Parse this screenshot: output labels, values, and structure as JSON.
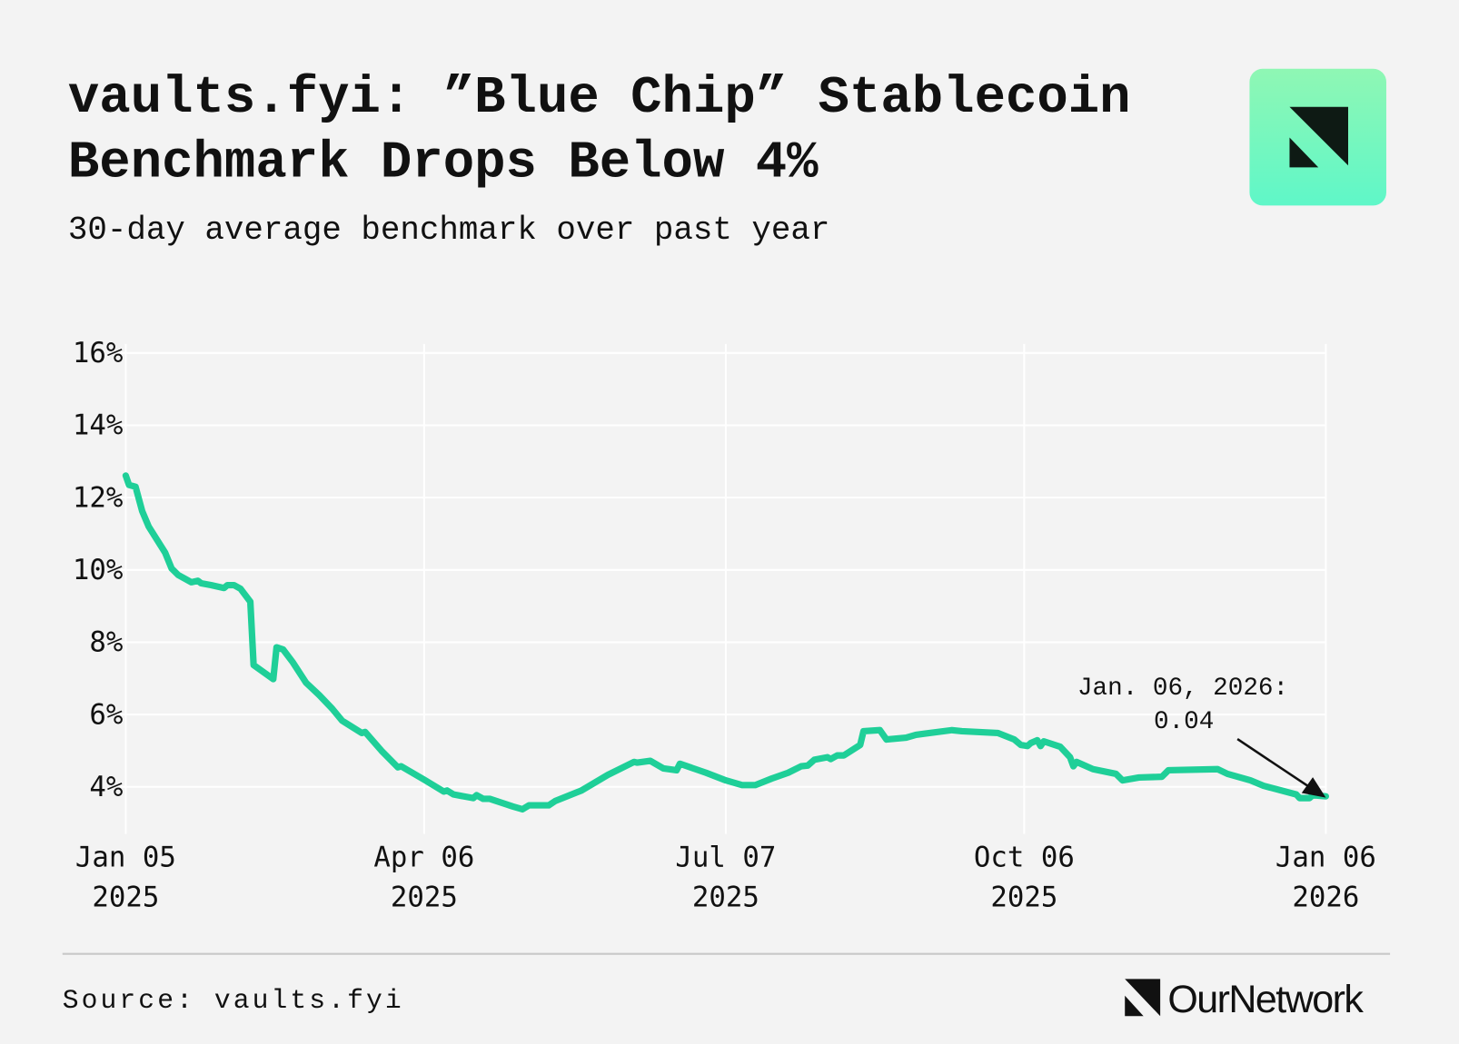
{
  "chart_data": {
    "type": "line",
    "title": [
      "vaults.fyi: ”Blue Chip” Stablecoin",
      "Benchmark Drops Below 4%"
    ],
    "subtitle": "30-day average benchmark over past year",
    "source": "Source: vaults.fyi",
    "brand": "OurNetwork",
    "annotation": [
      "Jan. 06, 2026:",
      "0.04"
    ],
    "color": "#1fcf98",
    "grid": true,
    "x": [
      "2025-01-05",
      "2025-01-06",
      "2025-01-08",
      "2025-01-10",
      "2025-01-12",
      "2025-01-17",
      "2025-01-19",
      "2025-01-21",
      "2025-01-25",
      "2025-01-27",
      "2025-01-28",
      "2025-01-31",
      "2025-02-04",
      "2025-02-05",
      "2025-02-07",
      "2025-02-09",
      "2025-02-12",
      "2025-02-13",
      "2025-02-19",
      "2025-02-20",
      "2025-02-22",
      "2025-02-25",
      "2025-03-01",
      "2025-03-05",
      "2025-03-09",
      "2025-03-12",
      "2025-03-18",
      "2025-03-19",
      "2025-03-24",
      "2025-03-29",
      "2025-03-30",
      "2025-04-06",
      "2025-04-12",
      "2025-04-13",
      "2025-04-15",
      "2025-04-21",
      "2025-04-22",
      "2025-04-24",
      "2025-04-26",
      "2025-05-03",
      "2025-05-06",
      "2025-05-08",
      "2025-05-14",
      "2025-05-16",
      "2025-05-24",
      "2025-06-01",
      "2025-06-09",
      "2025-06-10",
      "2025-06-14",
      "2025-06-18",
      "2025-06-22",
      "2025-06-23",
      "2025-07-01",
      "2025-07-07",
      "2025-07-12",
      "2025-07-16",
      "2025-07-21",
      "2025-07-26",
      "2025-07-30",
      "2025-08-01",
      "2025-08-03",
      "2025-08-07",
      "2025-08-08",
      "2025-08-10",
      "2025-08-12",
      "2025-08-17",
      "2025-08-18",
      "2025-08-23",
      "2025-08-25",
      "2025-08-31",
      "2025-09-03",
      "2025-09-14",
      "2025-09-17",
      "2025-09-28",
      "2025-10-03",
      "2025-10-05",
      "2025-10-07",
      "2025-10-08",
      "2025-10-10",
      "2025-10-11",
      "2025-10-12",
      "2025-10-17",
      "2025-10-20",
      "2025-10-21",
      "2025-10-22",
      "2025-10-27",
      "2025-11-03",
      "2025-11-05",
      "2025-11-10",
      "2025-11-17",
      "2025-11-19",
      "2025-12-04",
      "2025-12-07",
      "2025-12-14",
      "2025-12-18",
      "2025-12-28",
      "2025-12-29",
      "2026-01-01",
      "2026-01-02",
      "2026-01-06"
    ],
    "values": [
      12.61,
      12.35,
      12.3,
      11.63,
      11.2,
      10.48,
      10.04,
      9.86,
      9.66,
      9.7,
      9.63,
      9.58,
      9.5,
      9.58,
      9.58,
      9.48,
      9.12,
      7.37,
      6.98,
      7.86,
      7.8,
      7.44,
      6.88,
      6.54,
      6.16,
      5.83,
      5.49,
      5.52,
      5.0,
      4.54,
      4.57,
      4.2,
      3.87,
      3.9,
      3.79,
      3.69,
      3.77,
      3.67,
      3.67,
      3.46,
      3.38,
      3.49,
      3.49,
      3.61,
      3.9,
      4.33,
      4.69,
      4.67,
      4.72,
      4.51,
      4.46,
      4.64,
      4.39,
      4.18,
      4.05,
      4.05,
      4.23,
      4.39,
      4.57,
      4.59,
      4.75,
      4.82,
      4.77,
      4.87,
      4.87,
      5.16,
      5.54,
      5.57,
      5.31,
      5.36,
      5.44,
      5.57,
      5.54,
      5.49,
      5.31,
      5.16,
      5.13,
      5.21,
      5.29,
      5.13,
      5.26,
      5.11,
      4.82,
      4.57,
      4.69,
      4.49,
      4.36,
      4.18,
      4.26,
      4.28,
      4.46,
      4.49,
      4.36,
      4.18,
      4.03,
      3.79,
      3.69,
      3.69,
      3.77,
      3.74
    ],
    "xlim": [
      "2025-01-05",
      "2026-01-06"
    ],
    "xticks": [
      {
        "value": "2025-01-05",
        "label": [
          "Jan 05",
          "2025"
        ]
      },
      {
        "value": "2025-04-06",
        "label": [
          "Apr 06",
          "2025"
        ]
      },
      {
        "value": "2025-07-07",
        "label": [
          "Jul 07",
          "2025"
        ]
      },
      {
        "value": "2025-10-06",
        "label": [
          "Oct 06",
          "2025"
        ]
      },
      {
        "value": "2026-01-06",
        "label": [
          "Jan 06",
          "2026"
        ]
      }
    ],
    "ylim": [
      2.7,
      16.3
    ],
    "yticks": [
      {
        "value": 4,
        "label": "4%"
      },
      {
        "value": 6,
        "label": "6%"
      },
      {
        "value": 8,
        "label": "8%"
      },
      {
        "value": 10,
        "label": "10%"
      },
      {
        "value": 12,
        "label": "12%"
      },
      {
        "value": 14,
        "label": "14%"
      },
      {
        "value": 16,
        "label": "16%"
      }
    ]
  }
}
